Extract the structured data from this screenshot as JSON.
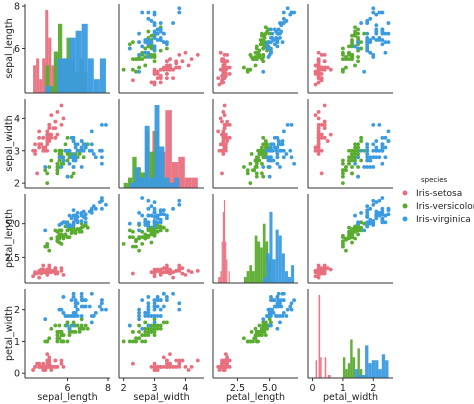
{
  "chart_data": {
    "type": "scatter",
    "subtype": "pairplot",
    "variables": [
      "sepal_length",
      "sepal_width",
      "petal_length",
      "petal_width"
    ],
    "ranges": {
      "sepal_length": [
        3.9,
        8.1
      ],
      "sepal_width": [
        1.85,
        4.6
      ],
      "petal_length": [
        0.6,
        7.2
      ],
      "petal_width": [
        -0.15,
        2.65
      ]
    },
    "ticks": {
      "sepal_length": {
        "values": [
          6,
          8
        ],
        "labels": [
          "6",
          "8"
        ]
      },
      "sepal_width": {
        "values": [
          2,
          3,
          4
        ],
        "labels": [
          "2",
          "3",
          "4"
        ]
      },
      "petal_length": {
        "values": [
          2.5,
          5.0
        ],
        "labels": [
          "2.5",
          "5.0"
        ]
      },
      "petal_width": {
        "values": [
          0,
          1,
          2
        ],
        "labels": [
          "0",
          "1",
          "2"
        ]
      }
    },
    "diagonal": "histogram",
    "hist_bins": 10,
    "grid": false,
    "legend_position": "right",
    "legend_title": "species",
    "series": [
      {
        "name": "Iris-setosa",
        "color": "#e8707e",
        "points": [
          [
            5.1,
            3.5,
            1.4,
            0.2
          ],
          [
            4.9,
            3.0,
            1.4,
            0.2
          ],
          [
            4.7,
            3.2,
            1.3,
            0.2
          ],
          [
            4.6,
            3.1,
            1.5,
            0.2
          ],
          [
            5.0,
            3.6,
            1.4,
            0.2
          ],
          [
            5.4,
            3.9,
            1.7,
            0.4
          ],
          [
            4.6,
            3.4,
            1.4,
            0.3
          ],
          [
            5.0,
            3.4,
            1.5,
            0.2
          ],
          [
            4.4,
            2.9,
            1.4,
            0.2
          ],
          [
            4.9,
            3.1,
            1.5,
            0.1
          ],
          [
            5.4,
            3.7,
            1.5,
            0.2
          ],
          [
            4.8,
            3.4,
            1.6,
            0.2
          ],
          [
            4.8,
            3.0,
            1.4,
            0.1
          ],
          [
            4.3,
            3.0,
            1.1,
            0.1
          ],
          [
            5.8,
            4.0,
            1.2,
            0.2
          ],
          [
            5.7,
            4.4,
            1.5,
            0.4
          ],
          [
            5.4,
            3.9,
            1.3,
            0.4
          ],
          [
            5.1,
            3.5,
            1.4,
            0.3
          ],
          [
            5.7,
            3.8,
            1.7,
            0.3
          ],
          [
            5.1,
            3.8,
            1.5,
            0.3
          ],
          [
            5.4,
            3.4,
            1.7,
            0.2
          ],
          [
            5.1,
            3.7,
            1.5,
            0.4
          ],
          [
            4.6,
            3.6,
            1.0,
            0.2
          ],
          [
            5.1,
            3.3,
            1.7,
            0.5
          ],
          [
            4.8,
            3.4,
            1.9,
            0.2
          ],
          [
            5.0,
            3.0,
            1.6,
            0.2
          ],
          [
            5.0,
            3.4,
            1.6,
            0.4
          ],
          [
            5.2,
            3.5,
            1.5,
            0.2
          ],
          [
            5.2,
            3.4,
            1.4,
            0.2
          ],
          [
            4.7,
            3.2,
            1.6,
            0.2
          ],
          [
            4.8,
            3.1,
            1.6,
            0.2
          ],
          [
            5.4,
            3.4,
            1.5,
            0.4
          ],
          [
            5.2,
            4.1,
            1.5,
            0.1
          ],
          [
            5.5,
            4.2,
            1.4,
            0.2
          ],
          [
            4.9,
            3.1,
            1.5,
            0.1
          ],
          [
            5.0,
            3.2,
            1.2,
            0.2
          ],
          [
            5.5,
            3.5,
            1.3,
            0.2
          ],
          [
            4.9,
            3.1,
            1.5,
            0.1
          ],
          [
            4.4,
            3.0,
            1.3,
            0.2
          ],
          [
            5.1,
            3.4,
            1.5,
            0.2
          ],
          [
            5.0,
            3.5,
            1.3,
            0.3
          ],
          [
            4.5,
            2.3,
            1.3,
            0.3
          ],
          [
            4.4,
            3.2,
            1.3,
            0.2
          ],
          [
            5.0,
            3.5,
            1.6,
            0.6
          ],
          [
            5.1,
            3.8,
            1.9,
            0.4
          ],
          [
            4.8,
            3.0,
            1.4,
            0.3
          ],
          [
            5.1,
            3.8,
            1.6,
            0.2
          ],
          [
            4.6,
            3.2,
            1.4,
            0.2
          ],
          [
            5.3,
            3.7,
            1.5,
            0.2
          ],
          [
            5.0,
            3.3,
            1.4,
            0.2
          ]
        ]
      },
      {
        "name": "Iris-versicolor",
        "color": "#5aac2f",
        "points": [
          [
            7.0,
            3.2,
            4.7,
            1.4
          ],
          [
            6.4,
            3.2,
            4.5,
            1.5
          ],
          [
            6.9,
            3.1,
            4.9,
            1.5
          ],
          [
            5.5,
            2.3,
            4.0,
            1.3
          ],
          [
            6.5,
            2.8,
            4.6,
            1.5
          ],
          [
            5.7,
            2.8,
            4.5,
            1.3
          ],
          [
            6.3,
            3.3,
            4.7,
            1.6
          ],
          [
            4.9,
            2.4,
            3.3,
            1.0
          ],
          [
            6.6,
            2.9,
            4.6,
            1.3
          ],
          [
            5.2,
            2.7,
            3.9,
            1.4
          ],
          [
            5.0,
            2.0,
            3.5,
            1.0
          ],
          [
            5.9,
            3.0,
            4.2,
            1.5
          ],
          [
            6.0,
            2.2,
            4.0,
            1.0
          ],
          [
            6.1,
            2.9,
            4.7,
            1.4
          ],
          [
            5.6,
            2.9,
            3.6,
            1.3
          ],
          [
            6.7,
            3.1,
            4.4,
            1.4
          ],
          [
            5.6,
            3.0,
            4.5,
            1.5
          ],
          [
            5.8,
            2.7,
            4.1,
            1.0
          ],
          [
            6.2,
            2.2,
            4.5,
            1.5
          ],
          [
            5.6,
            2.5,
            3.9,
            1.1
          ],
          [
            5.9,
            3.2,
            4.8,
            1.8
          ],
          [
            6.1,
            2.8,
            4.0,
            1.3
          ],
          [
            6.3,
            2.5,
            4.9,
            1.5
          ],
          [
            6.1,
            2.8,
            4.7,
            1.2
          ],
          [
            6.4,
            2.9,
            4.3,
            1.3
          ],
          [
            6.6,
            3.0,
            4.4,
            1.4
          ],
          [
            6.8,
            2.8,
            4.8,
            1.4
          ],
          [
            6.7,
            3.0,
            5.0,
            1.7
          ],
          [
            6.0,
            2.9,
            4.5,
            1.5
          ],
          [
            5.7,
            2.6,
            3.5,
            1.0
          ],
          [
            5.5,
            2.4,
            3.8,
            1.1
          ],
          [
            5.5,
            2.4,
            3.7,
            1.0
          ],
          [
            5.8,
            2.7,
            3.9,
            1.2
          ],
          [
            6.0,
            2.7,
            5.1,
            1.6
          ],
          [
            5.4,
            3.0,
            4.5,
            1.5
          ],
          [
            6.0,
            3.4,
            4.5,
            1.6
          ],
          [
            6.7,
            3.1,
            4.7,
            1.5
          ],
          [
            6.3,
            2.3,
            4.4,
            1.3
          ],
          [
            5.6,
            3.0,
            4.1,
            1.3
          ],
          [
            5.5,
            2.5,
            4.0,
            1.3
          ],
          [
            5.5,
            2.6,
            4.4,
            1.2
          ],
          [
            6.1,
            3.0,
            4.6,
            1.4
          ],
          [
            5.8,
            2.6,
            4.0,
            1.2
          ],
          [
            5.0,
            2.3,
            3.3,
            1.0
          ],
          [
            5.6,
            2.7,
            4.2,
            1.3
          ],
          [
            5.7,
            3.0,
            4.2,
            1.2
          ],
          [
            5.7,
            2.9,
            4.2,
            1.3
          ],
          [
            6.2,
            2.9,
            4.3,
            1.3
          ],
          [
            5.1,
            2.5,
            3.0,
            1.1
          ],
          [
            5.7,
            2.8,
            4.1,
            1.3
          ]
        ]
      },
      {
        "name": "Iris-virginica",
        "color": "#3b9be0",
        "points": [
          [
            6.3,
            3.3,
            6.0,
            2.5
          ],
          [
            5.8,
            2.7,
            5.1,
            1.9
          ],
          [
            7.1,
            3.0,
            5.9,
            2.1
          ],
          [
            6.3,
            2.9,
            5.6,
            1.8
          ],
          [
            6.5,
            3.0,
            5.8,
            2.2
          ],
          [
            7.6,
            3.0,
            6.6,
            2.1
          ],
          [
            4.9,
            2.5,
            4.5,
            1.7
          ],
          [
            7.3,
            2.9,
            6.3,
            1.8
          ],
          [
            6.7,
            2.5,
            5.8,
            1.8
          ],
          [
            7.2,
            3.6,
            6.1,
            2.5
          ],
          [
            6.5,
            3.2,
            5.1,
            2.0
          ],
          [
            6.4,
            2.7,
            5.3,
            1.9
          ],
          [
            6.8,
            3.0,
            5.5,
            2.1
          ],
          [
            5.7,
            2.5,
            5.0,
            2.0
          ],
          [
            5.8,
            2.8,
            5.1,
            2.4
          ],
          [
            6.4,
            3.2,
            5.3,
            2.3
          ],
          [
            6.5,
            3.0,
            5.5,
            1.8
          ],
          [
            7.7,
            3.8,
            6.7,
            2.2
          ],
          [
            7.7,
            2.6,
            6.9,
            2.3
          ],
          [
            6.0,
            2.2,
            5.0,
            1.5
          ],
          [
            6.9,
            3.2,
            5.7,
            2.3
          ],
          [
            5.6,
            2.8,
            4.9,
            2.0
          ],
          [
            7.7,
            2.8,
            6.7,
            2.0
          ],
          [
            6.3,
            2.7,
            4.9,
            1.8
          ],
          [
            6.7,
            3.3,
            5.7,
            2.1
          ],
          [
            7.2,
            3.2,
            6.0,
            1.8
          ],
          [
            6.2,
            2.8,
            4.8,
            1.8
          ],
          [
            6.1,
            3.0,
            4.9,
            1.8
          ],
          [
            6.4,
            2.8,
            5.6,
            2.1
          ],
          [
            7.2,
            3.0,
            5.8,
            1.6
          ],
          [
            7.4,
            2.8,
            6.1,
            1.9
          ],
          [
            7.9,
            3.8,
            6.4,
            2.0
          ],
          [
            6.4,
            2.8,
            5.6,
            2.2
          ],
          [
            6.3,
            2.8,
            5.1,
            1.5
          ],
          [
            6.1,
            2.6,
            5.6,
            1.4
          ],
          [
            7.7,
            3.0,
            6.1,
            2.3
          ],
          [
            6.3,
            3.4,
            5.6,
            2.4
          ],
          [
            6.4,
            3.1,
            5.5,
            1.8
          ],
          [
            6.0,
            3.0,
            4.8,
            1.8
          ],
          [
            6.9,
            3.1,
            5.4,
            2.1
          ],
          [
            6.7,
            3.1,
            5.6,
            2.4
          ],
          [
            6.9,
            3.1,
            5.1,
            2.3
          ],
          [
            5.8,
            2.7,
            5.1,
            1.9
          ],
          [
            6.8,
            3.2,
            5.9,
            2.3
          ],
          [
            6.7,
            3.3,
            5.7,
            2.5
          ],
          [
            6.7,
            3.0,
            5.2,
            2.3
          ],
          [
            6.3,
            2.5,
            5.0,
            1.9
          ],
          [
            6.5,
            3.0,
            5.2,
            2.0
          ],
          [
            6.2,
            3.4,
            5.4,
            2.3
          ],
          [
            5.9,
            3.0,
            5.1,
            1.8
          ]
        ]
      }
    ]
  }
}
